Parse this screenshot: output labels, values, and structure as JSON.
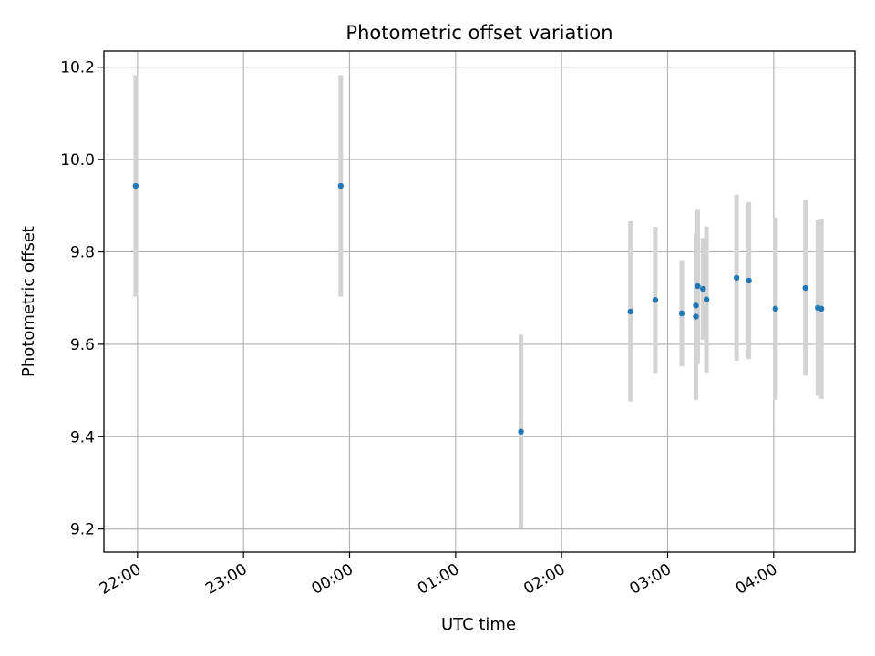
{
  "chart_data": {
    "type": "scatter",
    "title": "Photometric offset variation",
    "xlabel": "UTC time",
    "ylabel": "Photometric offset",
    "xlim": [
      "21:41",
      "04:46"
    ],
    "ylim": [
      9.15,
      10.235
    ],
    "grid": true,
    "x_ticks": [
      "22:00",
      "23:00",
      "00:00",
      "01:00",
      "02:00",
      "03:00",
      "04:00"
    ],
    "y_ticks": [
      "9.2",
      "9.4",
      "9.6",
      "9.8",
      "10.0",
      "10.2"
    ],
    "colors": {
      "point": "#1f77b4",
      "errorbar": "#d3d3d3",
      "grid": "#b0b0b0"
    },
    "series": [
      {
        "points": [
          {
            "time": "21:59",
            "y": 9.943,
            "err": 0.24
          },
          {
            "time": "23:55",
            "y": 9.943,
            "err": 0.24
          },
          {
            "time": "01:37",
            "y": 9.411,
            "err": 0.21
          },
          {
            "time": "02:39",
            "y": 9.671,
            "err": 0.195
          },
          {
            "time": "02:53",
            "y": 9.696,
            "err": 0.158
          },
          {
            "time": "03:08",
            "y": 9.667,
            "err": 0.115
          },
          {
            "time": "03:16",
            "y": 9.66,
            "err": 0.18
          },
          {
            "time": "03:16",
            "y": 9.684,
            "err": 0.12
          },
          {
            "time": "03:17",
            "y": 9.726,
            "err": 0.167
          },
          {
            "time": "03:20",
            "y": 9.72,
            "err": 0.11
          },
          {
            "time": "03:22",
            "y": 9.697,
            "err": 0.158
          },
          {
            "time": "03:39",
            "y": 9.744,
            "err": 0.18
          },
          {
            "time": "03:46",
            "y": 9.738,
            "err": 0.17
          },
          {
            "time": "04:01",
            "y": 9.677,
            "err": 0.197
          },
          {
            "time": "04:18",
            "y": 9.722,
            "err": 0.19
          },
          {
            "time": "04:25",
            "y": 9.679,
            "err": 0.19
          },
          {
            "time": "04:27",
            "y": 9.677,
            "err": 0.195
          }
        ]
      }
    ]
  }
}
